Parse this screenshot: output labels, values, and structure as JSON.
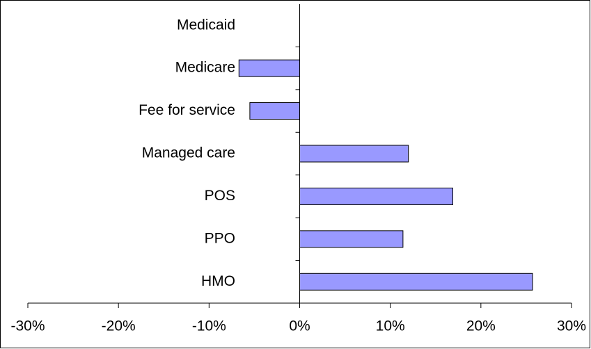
{
  "chart_data": {
    "type": "hbar",
    "categories": [
      "Medicaid",
      "Medicare",
      "Fee for service",
      "Managed care",
      "POS",
      "PPO",
      "HMO"
    ],
    "values": [
      0,
      -6.7,
      -5.5,
      12.0,
      16.9,
      11.4,
      25.7
    ],
    "color": "#9999ff",
    "xlim": [
      -30,
      30
    ],
    "xticks": [
      {
        "value": -30,
        "label": "-30%"
      },
      {
        "value": -20,
        "label": "-20%"
      },
      {
        "value": -10,
        "label": "-10%"
      },
      {
        "value": 0,
        "label": "0%"
      },
      {
        "value": 10,
        "label": "10%"
      },
      {
        "value": 20,
        "label": "20%"
      },
      {
        "value": 30,
        "label": "30%"
      }
    ],
    "grid": false
  }
}
